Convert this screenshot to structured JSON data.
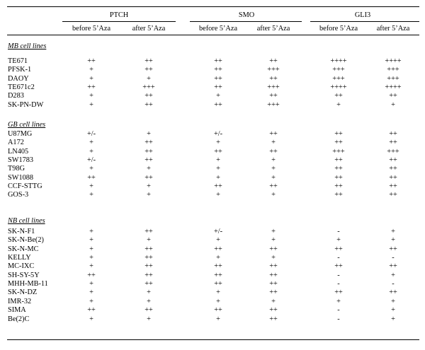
{
  "groups": [
    {
      "label": "PTCH",
      "before": "before 5’Aza",
      "after": "after 5’Aza"
    },
    {
      "label": "SMO",
      "before": "before 5’Aza",
      "after": "after 5’Aza"
    },
    {
      "label": "GLI3",
      "before": "before 5’Aza",
      "after": "after 5’Aza"
    }
  ],
  "sections": [
    {
      "title": "MB cell lines",
      "rows": [
        {
          "name": "TE671",
          "values": [
            "++",
            "++",
            "++",
            "++",
            "++++",
            "++++"
          ]
        },
        {
          "name": "PFSK-1",
          "values": [
            "+",
            "++",
            "++",
            "+++",
            "+++",
            "+++"
          ]
        },
        {
          "name": "DAOY",
          "values": [
            "+",
            "+",
            "++",
            "++",
            "+++",
            "+++"
          ]
        },
        {
          "name": "TE671c2",
          "values": [
            "++",
            "+++",
            "++",
            "+++",
            "++++",
            "++++"
          ]
        },
        {
          "name": "D283",
          "values": [
            "+",
            "++",
            "+",
            "++",
            "++",
            "++"
          ]
        },
        {
          "name": "SK-PN-DW",
          "values": [
            "+",
            "++",
            "++",
            "+++",
            "+",
            "+"
          ]
        }
      ]
    },
    {
      "title": "GB cell lines",
      "rows": [
        {
          "name": "U87MG",
          "values": [
            "+/-",
            "+",
            "+/-",
            "++",
            "++",
            "++"
          ]
        },
        {
          "name": "A172",
          "values": [
            "+",
            "++",
            "+",
            "+",
            "++",
            "++"
          ]
        },
        {
          "name": "LN405",
          "values": [
            "+",
            "++",
            "++",
            "++",
            "+++",
            "+++"
          ]
        },
        {
          "name": "SW1783",
          "values": [
            "+/-",
            "++",
            "+",
            "+",
            "++",
            "++"
          ]
        },
        {
          "name": "T98G",
          "values": [
            "+",
            "+",
            "+",
            "+",
            "++",
            "++"
          ]
        },
        {
          "name": "SW1088",
          "values": [
            "++",
            "++",
            "+",
            "+",
            "++",
            "++"
          ]
        },
        {
          "name": "CCF-STTG",
          "values": [
            "+",
            "+",
            "++",
            "++",
            "++",
            "++"
          ]
        },
        {
          "name": "GOS-3",
          "values": [
            "+",
            "+",
            "+",
            "+",
            "++",
            "++"
          ]
        }
      ]
    },
    {
      "title": "NB cell lines",
      "rows": [
        {
          "name": "SK-N-F1",
          "values": [
            "+",
            "++",
            "+/-",
            "+",
            "-",
            "+"
          ]
        },
        {
          "name": "SK-N-Be(2)",
          "values": [
            "+",
            "+",
            "+",
            "+",
            "+",
            "+"
          ]
        },
        {
          "name": "SK-N-MC",
          "values": [
            "+",
            "++",
            "++",
            "++",
            "++",
            "++"
          ]
        },
        {
          "name": "KELLY",
          "values": [
            "+",
            "++",
            "+",
            "+",
            "-",
            "-"
          ]
        },
        {
          "name": "MC-IXC",
          "values": [
            "+",
            "++",
            "++",
            "++",
            "++",
            "++"
          ]
        },
        {
          "name": "SH-SY-5Y",
          "values": [
            "++",
            "++",
            "++",
            "++",
            "-",
            "+"
          ]
        },
        {
          "name": "MHH-MB-11",
          "values": [
            "+",
            "++",
            "++",
            "++",
            "-",
            "-"
          ]
        },
        {
          "name": "SK-N-DZ",
          "values": [
            "+",
            "+",
            "+",
            "++",
            "++",
            "++"
          ]
        },
        {
          "name": "IMR-32",
          "values": [
            "+",
            "+",
            "+",
            "+",
            "+",
            "+"
          ]
        },
        {
          "name": "SIMA",
          "values": [
            "++",
            "++",
            "++",
            "++",
            "-",
            "+"
          ]
        },
        {
          "name": "Be(2)C",
          "values": [
            "+",
            "+",
            "+",
            "++",
            "-",
            "+"
          ]
        }
      ]
    }
  ]
}
